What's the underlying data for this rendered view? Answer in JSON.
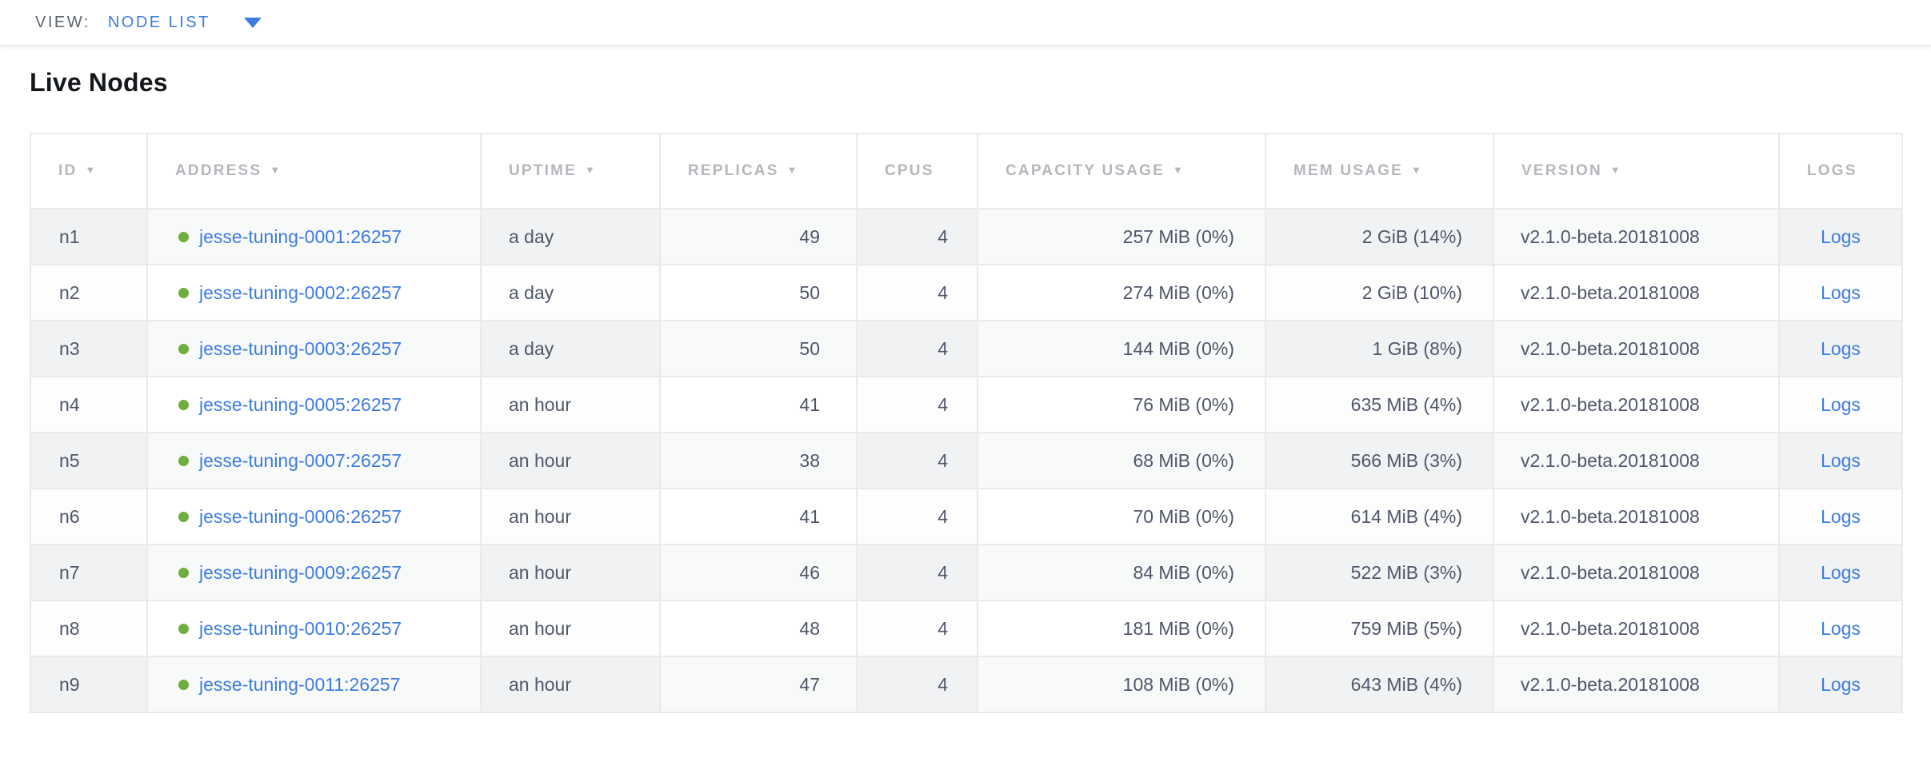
{
  "view_bar": {
    "label": "VIEW:",
    "selected": "NODE LIST"
  },
  "page": {
    "title": "Live Nodes"
  },
  "icons": {
    "sort_desc": "▼"
  },
  "colors": {
    "link_blue": "#3e7ce0",
    "live_green": "#6ead3e",
    "header_gray": "#b4b7bc",
    "cell_slate": "#4f5769",
    "stripe_light": "#f1f2f4"
  },
  "table": {
    "columns": [
      {
        "key": "id",
        "label": "ID",
        "sortable": true
      },
      {
        "key": "address",
        "label": "ADDRESS",
        "sortable": true
      },
      {
        "key": "uptime",
        "label": "UPTIME",
        "sortable": true
      },
      {
        "key": "replicas",
        "label": "REPLICAS",
        "sortable": true
      },
      {
        "key": "cpus",
        "label": "CPUS",
        "sortable": false
      },
      {
        "key": "capacity",
        "label": "CAPACITY USAGE",
        "sortable": true
      },
      {
        "key": "mem",
        "label": "MEM USAGE",
        "sortable": true
      },
      {
        "key": "version",
        "label": "VERSION",
        "sortable": true
      },
      {
        "key": "logs",
        "label": "LOGS",
        "sortable": false
      }
    ],
    "rows": [
      {
        "id": "n1",
        "address": "jesse-tuning-0001:26257",
        "status": "live",
        "uptime": "a day",
        "replicas": "49",
        "cpus": "4",
        "capacity": "257 MiB (0%)",
        "mem": "2 GiB (14%)",
        "version": "v2.1.0-beta.20181008",
        "logs": "Logs"
      },
      {
        "id": "n2",
        "address": "jesse-tuning-0002:26257",
        "status": "live",
        "uptime": "a day",
        "replicas": "50",
        "cpus": "4",
        "capacity": "274 MiB (0%)",
        "mem": "2 GiB (10%)",
        "version": "v2.1.0-beta.20181008",
        "logs": "Logs"
      },
      {
        "id": "n3",
        "address": "jesse-tuning-0003:26257",
        "status": "live",
        "uptime": "a day",
        "replicas": "50",
        "cpus": "4",
        "capacity": "144 MiB (0%)",
        "mem": "1 GiB (8%)",
        "version": "v2.1.0-beta.20181008",
        "logs": "Logs"
      },
      {
        "id": "n4",
        "address": "jesse-tuning-0005:26257",
        "status": "live",
        "uptime": "an hour",
        "replicas": "41",
        "cpus": "4",
        "capacity": "76 MiB (0%)",
        "mem": "635 MiB (4%)",
        "version": "v2.1.0-beta.20181008",
        "logs": "Logs"
      },
      {
        "id": "n5",
        "address": "jesse-tuning-0007:26257",
        "status": "live",
        "uptime": "an hour",
        "replicas": "38",
        "cpus": "4",
        "capacity": "68 MiB (0%)",
        "mem": "566 MiB (3%)",
        "version": "v2.1.0-beta.20181008",
        "logs": "Logs"
      },
      {
        "id": "n6",
        "address": "jesse-tuning-0006:26257",
        "status": "live",
        "uptime": "an hour",
        "replicas": "41",
        "cpus": "4",
        "capacity": "70 MiB (0%)",
        "mem": "614 MiB (4%)",
        "version": "v2.1.0-beta.20181008",
        "logs": "Logs"
      },
      {
        "id": "n7",
        "address": "jesse-tuning-0009:26257",
        "status": "live",
        "uptime": "an hour",
        "replicas": "46",
        "cpus": "4",
        "capacity": "84 MiB (0%)",
        "mem": "522 MiB (3%)",
        "version": "v2.1.0-beta.20181008",
        "logs": "Logs"
      },
      {
        "id": "n8",
        "address": "jesse-tuning-0010:26257",
        "status": "live",
        "uptime": "an hour",
        "replicas": "48",
        "cpus": "4",
        "capacity": "181 MiB (0%)",
        "mem": "759 MiB (5%)",
        "version": "v2.1.0-beta.20181008",
        "logs": "Logs"
      },
      {
        "id": "n9",
        "address": "jesse-tuning-0011:26257",
        "status": "live",
        "uptime": "an hour",
        "replicas": "47",
        "cpus": "4",
        "capacity": "108 MiB (0%)",
        "mem": "643 MiB (4%)",
        "version": "v2.1.0-beta.20181008",
        "logs": "Logs"
      }
    ],
    "column_widths": {
      "id": 146,
      "address": 417,
      "uptime": 224,
      "replicas": 246,
      "cpus": 151,
      "capacity": 360,
      "mem": 285,
      "version": 357,
      "logs": 154
    }
  }
}
